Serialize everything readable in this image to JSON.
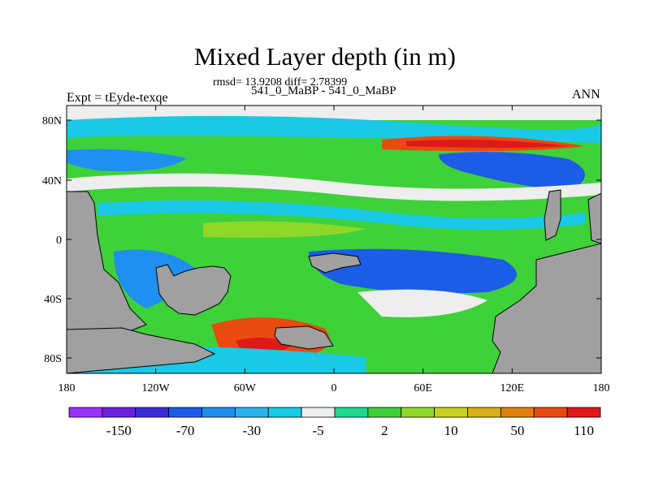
{
  "figure": {
    "title": "Mixed Layer depth (in m)",
    "stats_line": "rmsd= 13.9208 diff= 2.78399",
    "cases_line": "541_0_MaBP - 541_0_MaBP",
    "left_label": "Expt = tEyde-texqe",
    "right_label": "ANN"
  },
  "map": {
    "land_color": "#a0a0a0",
    "y_ticks": [
      "80N",
      "40N",
      "0",
      "40S",
      "80S"
    ],
    "x_ticks": [
      "180",
      "120W",
      "60W",
      "0",
      "60E",
      "120E",
      "180"
    ]
  },
  "colorbar": {
    "colors": [
      "#9b30ff",
      "#6a20e0",
      "#3a2ad8",
      "#1d5ce6",
      "#1f8ff0",
      "#2bb3ee",
      "#19c9e6",
      "#eeeeee",
      "#20d88f",
      "#3ed13a",
      "#8fd82a",
      "#c8d01f",
      "#d8b018",
      "#e08010",
      "#e84a10",
      "#e01818"
    ],
    "labels": [
      "-150",
      "-70",
      "-30",
      "-5",
      "2",
      "10",
      "50",
      "110"
    ]
  }
}
